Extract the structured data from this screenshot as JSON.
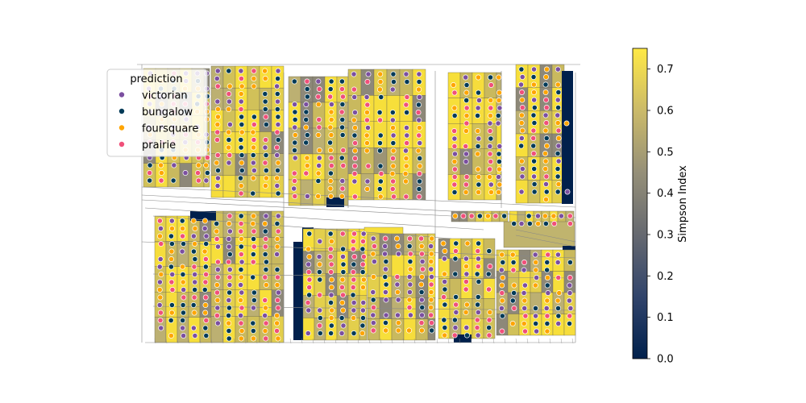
{
  "legend": {
    "title": "prediction",
    "entries": [
      {
        "label": "victorian",
        "color": "#7b4fa0"
      },
      {
        "label": "bungalow",
        "color": "#003a57"
      },
      {
        "label": "foursquare",
        "color": "#ffa500"
      },
      {
        "label": "prairie",
        "color": "#f0507a"
      }
    ]
  },
  "colorbar": {
    "label": "Simpson Index",
    "colormap": "cividis",
    "stops": [
      "#00204c",
      "#31446b",
      "#666970",
      "#958f78",
      "#cbba69",
      "#ffe945"
    ],
    "ticks": [
      {
        "value": 0.0,
        "label": "0.0"
      },
      {
        "value": 0.1,
        "label": "0.1"
      },
      {
        "value": 0.2,
        "label": "0.2"
      },
      {
        "value": 0.3,
        "label": "0.3"
      },
      {
        "value": 0.4,
        "label": "0.4"
      },
      {
        "value": 0.5,
        "label": "0.5"
      },
      {
        "value": 0.6,
        "label": "0.6"
      },
      {
        "value": 0.7,
        "label": "0.7"
      }
    ],
    "range": [
      0.0,
      0.75
    ]
  },
  "map": {
    "parcel_fill_colors": [
      "#d1c159",
      "#c9b95e",
      "#e3cf4c",
      "#f6dd3c",
      "#bcb072",
      "#8d8879"
    ],
    "low_index_color": "#00204c",
    "street_color": "#888888"
  }
}
